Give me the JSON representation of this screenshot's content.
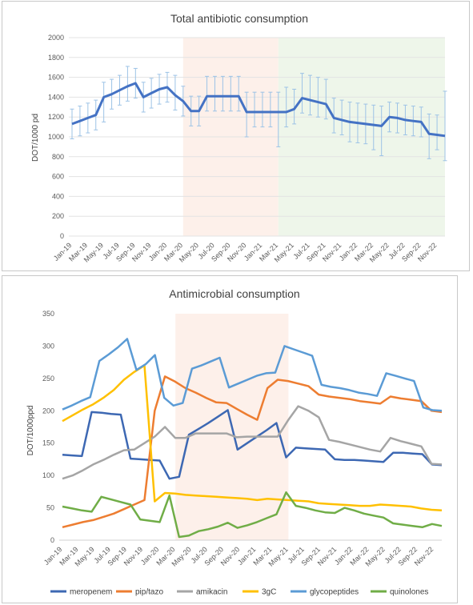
{
  "chart_data": [
    {
      "type": "line",
      "title": "Total antibiotic consumption",
      "ylabel": "DOT/1000 pd",
      "xlabel": "",
      "ylim": [
        0,
        2000
      ],
      "yticks": [
        "0",
        "200",
        "400",
        "600",
        "800",
        "1000",
        "1200",
        "1400",
        "1600",
        "1800",
        "2000"
      ],
      "xtick_labels": [
        "Jan-19",
        "Mar-19",
        "May-19",
        "Jul-19",
        "Sep-19",
        "Nov-19",
        "Jan-20",
        "Mar-20",
        "May-20",
        "Jul-20",
        "Sep-20",
        "Nov-20",
        "Jan-21",
        "Mar-21",
        "May-21",
        "Jul-21",
        "Sep-21",
        "Nov-21",
        "Jan-22",
        "Mar-22",
        "May-22",
        "Jul-22",
        "Sep-22",
        "Nov-22"
      ],
      "grid": true,
      "shaded_periods": [
        {
          "start_index": 14,
          "end_index": 26,
          "color": "#fdf0ea"
        },
        {
          "start_index": 26,
          "end_index": 47,
          "color": "#eef6ea"
        }
      ],
      "series": [
        {
          "color": "#4472c4",
          "values": [
            1130,
            1160,
            1190,
            1220,
            1400,
            1430,
            1470,
            1510,
            1540,
            1400,
            1440,
            1480,
            1500,
            1420,
            1360,
            1260,
            1260,
            1410,
            1410,
            1410,
            1410,
            1410,
            1250,
            1250,
            1250,
            1250,
            1250,
            1250,
            1280,
            1390,
            1370,
            1350,
            1330,
            1190,
            1170,
            1150,
            1140,
            1130,
            1120,
            1110,
            1200,
            1190,
            1170,
            1160,
            1150,
            1030,
            1020,
            1010
          ],
          "error_up": [
            150,
            150,
            150,
            150,
            150,
            150,
            150,
            200,
            150,
            150,
            150,
            150,
            150,
            200,
            150,
            150,
            150,
            200,
            200,
            200,
            200,
            200,
            200,
            200,
            200,
            200,
            200,
            250,
            200,
            250,
            250,
            250,
            250,
            200,
            200,
            200,
            200,
            200,
            200,
            200,
            150,
            150,
            150,
            150,
            150,
            200,
            200,
            450
          ],
          "error_down": [
            150,
            150,
            150,
            150,
            250,
            150,
            150,
            150,
            150,
            150,
            150,
            150,
            150,
            150,
            150,
            150,
            150,
            150,
            150,
            150,
            150,
            150,
            250,
            150,
            150,
            150,
            350,
            150,
            150,
            150,
            150,
            150,
            150,
            150,
            150,
            200,
            200,
            200,
            250,
            300,
            150,
            150,
            150,
            150,
            150,
            250,
            150,
            250
          ]
        }
      ]
    },
    {
      "type": "line",
      "title": "Antimicrobial consumption",
      "ylabel": "DOT/1000ppd",
      "xlabel": "",
      "ylim": [
        0,
        350
      ],
      "yticks": [
        "0",
        "50",
        "100",
        "150",
        "200",
        "250",
        "300",
        "350"
      ],
      "xtick_labels": [
        "Jan-19",
        "Mar-19",
        "May-19",
        "Jul-19",
        "Sep-19",
        "Nov-19",
        "Jan-20",
        "Mar-20",
        "May-20",
        "Jul-20",
        "Sep-20",
        "Nov-20",
        "Jan-21",
        "Mar-21",
        "May-21",
        "Jul-21",
        "Sep-21",
        "Nov-21",
        "Jan-22",
        "Mar-22",
        "May-22",
        "Jul-22",
        "Sep-22",
        "Nov-22"
      ],
      "grid": false,
      "legend_position": "bottom",
      "shaded_periods": [
        {
          "start_index": 14,
          "end_index": 28,
          "color": "#fdf0ea"
        }
      ],
      "series": [
        {
          "name": "meropenem",
          "color": "#3d68b3",
          "values": [
            132,
            131,
            130,
            198,
            197,
            195,
            194,
            126,
            125,
            124,
            123,
            95,
            98,
            163,
            172,
            181,
            191,
            201,
            140,
            150,
            160,
            170,
            181,
            128,
            143,
            142,
            141,
            140,
            125,
            124,
            124,
            123,
            122,
            121,
            135,
            135,
            134,
            133,
            117,
            116
          ]
        },
        {
          "name": "pip/tazo",
          "color": "#ed7d31",
          "values": [
            20,
            24,
            28,
            31,
            36,
            41,
            48,
            55,
            62,
            200,
            253,
            245,
            235,
            228,
            220,
            213,
            212,
            203,
            194,
            186,
            235,
            248,
            246,
            242,
            238,
            225,
            222,
            220,
            218,
            215,
            213,
            211,
            222,
            219,
            217,
            215,
            200,
            198
          ]
        },
        {
          "name": "amikacin",
          "color": "#a5a5a5",
          "values": [
            95,
            100,
            108,
            117,
            124,
            132,
            139,
            140,
            150,
            160,
            175,
            158,
            158,
            165,
            165,
            165,
            165,
            159,
            160,
            160,
            160,
            160,
            185,
            207,
            200,
            190,
            155,
            152,
            148,
            144,
            140,
            137,
            158,
            153,
            149,
            145,
            118,
            117
          ]
        },
        {
          "name": "3gC",
          "color": "#ffc000",
          "values": [
            184,
            193,
            202,
            210,
            220,
            232,
            248,
            260,
            270,
            60,
            73,
            72,
            70,
            69,
            68,
            67,
            66,
            65,
            64,
            62,
            64,
            63,
            62,
            61,
            60,
            57,
            56,
            55,
            54,
            53,
            53,
            55,
            54,
            53,
            52,
            49,
            47,
            46
          ]
        },
        {
          "name": "glycopeptides",
          "color": "#5b9bd5",
          "values": [
            202,
            208,
            215,
            221,
            277,
            287,
            298,
            311,
            263,
            272,
            286,
            220,
            208,
            212,
            265,
            270,
            276,
            282,
            236,
            242,
            248,
            254,
            258,
            259,
            300,
            295,
            290,
            285,
            240,
            237,
            235,
            232,
            228,
            226,
            223,
            258,
            254,
            250,
            246,
            205,
            201,
            200
          ]
        },
        {
          "name": "quinolones",
          "color": "#70ad47",
          "values": [
            52,
            49,
            46,
            44,
            67,
            63,
            59,
            55,
            32,
            30,
            28,
            69,
            5,
            7,
            14,
            17,
            21,
            27,
            19,
            23,
            28,
            34,
            40,
            74,
            53,
            50,
            46,
            43,
            42,
            50,
            46,
            41,
            38,
            35,
            26,
            24,
            22,
            20,
            25,
            22
          ]
        }
      ]
    }
  ]
}
